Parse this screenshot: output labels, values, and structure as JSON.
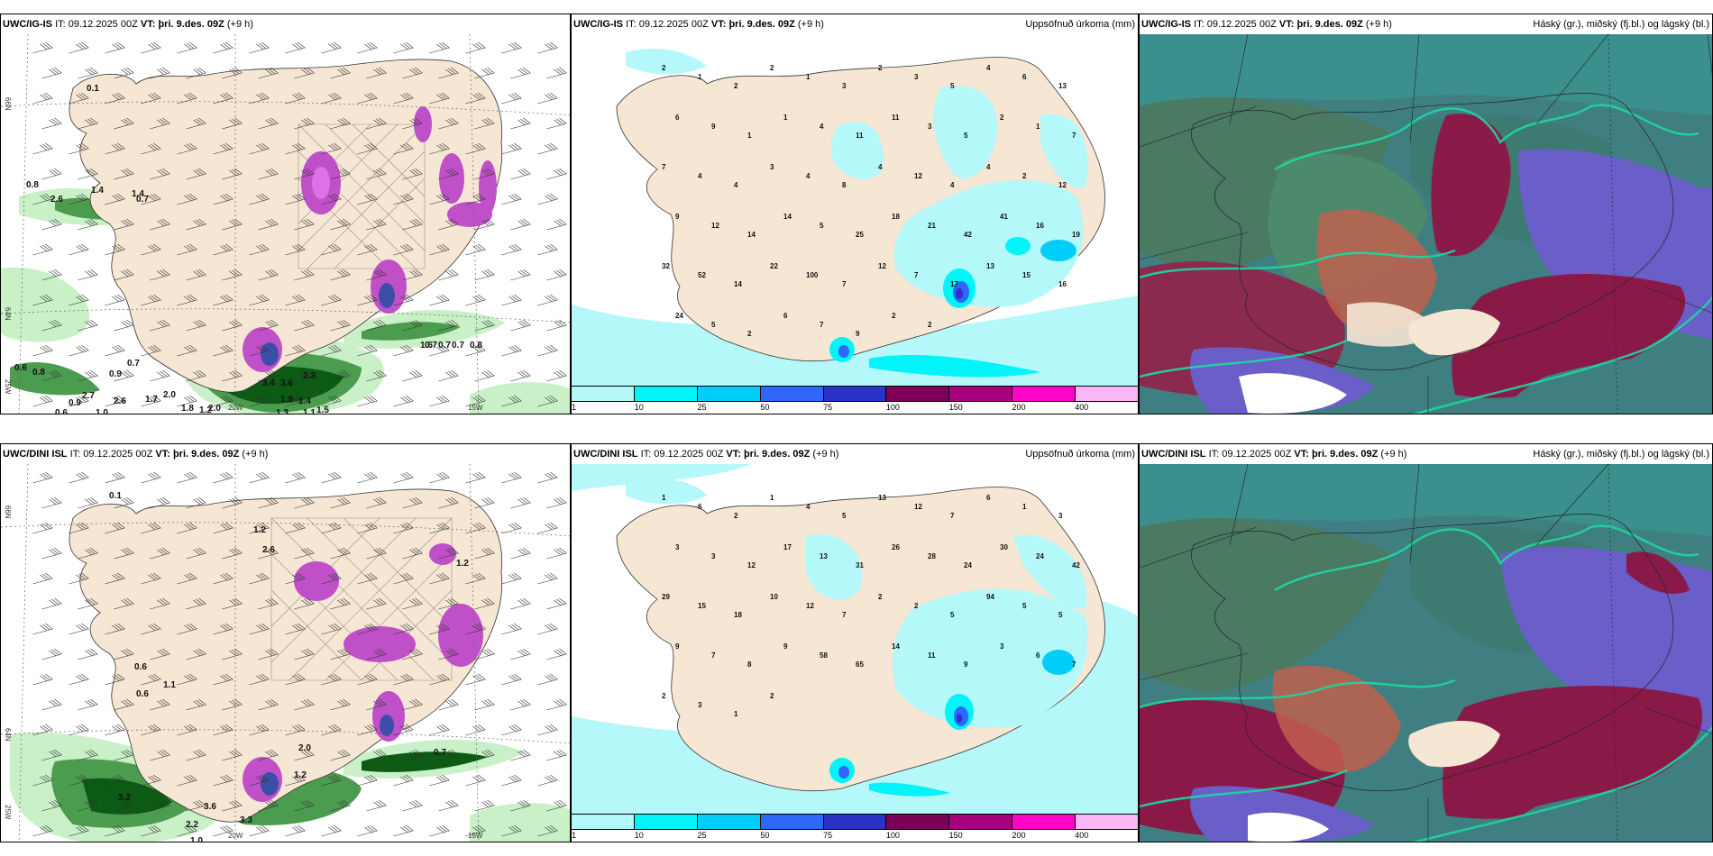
{
  "rows": [
    {
      "model": "UWC/IG-IS",
      "it_label": "IT:",
      "it_value": "09.12.2025 00Z",
      "vt_label": "VT:",
      "vt_value": "þri. 9.des. 09Z",
      "lead": "(+9 h)",
      "panels": {
        "wind": {
          "lat_labels": [
            "66N",
            "64N"
          ],
          "lon_labels": [
            "25W",
            "20W",
            "15W"
          ],
          "values": [
            "0.1",
            "0.8",
            "2.6",
            "1.4",
            "1.4",
            "0.7",
            "0.6",
            "0.8",
            "0.9",
            "0.7",
            "2.7",
            "2.6",
            "0.9",
            "1.0",
            "1.7",
            "2.0",
            "1.8",
            "1.2",
            "2.0",
            "3.4",
            "3.6",
            "2.3",
            "1.9",
            "1.4",
            "1.3",
            "1.1",
            "1.5",
            "1.6",
            "0.7",
            "0.7",
            "0.7",
            "0.8",
            "0.6"
          ]
        },
        "precip": {
          "title": "Uppsöfnuð úrkoma (mm)",
          "values": [
            "2",
            "1",
            "2",
            "2",
            "1",
            "3",
            "2",
            "3",
            "5",
            "4",
            "6",
            "13",
            "6",
            "9",
            "1",
            "1",
            "4",
            "11",
            "11",
            "3",
            "5",
            "2",
            "1",
            "7",
            "7",
            "4",
            "4",
            "3",
            "4",
            "8",
            "4",
            "12",
            "4",
            "4",
            "2",
            "12",
            "9",
            "12",
            "14",
            "14",
            "5",
            "25",
            "18",
            "21",
            "42",
            "41",
            "16",
            "19",
            "32",
            "52",
            "14",
            "22",
            "100",
            "7",
            "12",
            "7",
            "17",
            "13",
            "15",
            "16",
            "24",
            "5",
            "2",
            "6",
            "7",
            "9",
            "2",
            "2"
          ]
        },
        "cloud": {
          "title": "Háský (gr.), miðský (fj.bl.) og lágský (bl.)"
        }
      }
    },
    {
      "model": "UWC/DINI ISL",
      "it_label": "IT:",
      "it_value": "09.12.2025 00Z",
      "vt_label": "VT:",
      "vt_value": "þri. 9.des. 09Z",
      "lead": "(+9 h)",
      "panels": {
        "wind": {
          "lat_labels": [
            "66N",
            "64N"
          ],
          "lon_labels": [
            "25W",
            "20W",
            "15W"
          ],
          "values": [
            "0.1",
            "1.2",
            "2.6",
            "0.6",
            "3.2",
            "3.6",
            "2.2",
            "3.3",
            "1.0",
            "1.2",
            "0.7",
            "2.0",
            "1.1",
            "1.2",
            "0.6"
          ]
        },
        "precip": {
          "title": "Uppsöfnuð úrkoma (mm)",
          "values": [
            "1",
            "6",
            "2",
            "1",
            "4",
            "5",
            "13",
            "12",
            "7",
            "6",
            "1",
            "3",
            "3",
            "3",
            "12",
            "17",
            "13",
            "31",
            "26",
            "28",
            "24",
            "30",
            "24",
            "42",
            "29",
            "15",
            "18",
            "10",
            "12",
            "7",
            "2",
            "2",
            "5",
            "94",
            "5",
            "5",
            "9",
            "7",
            "8",
            "9",
            "58",
            "65",
            "14",
            "11",
            "9",
            "3",
            "6",
            "7",
            "2",
            "3",
            "1",
            "2"
          ]
        },
        "cloud": {
          "title": "Háský (gr.), miðský (fj.bl.) og lágský (bl.)"
        }
      }
    }
  ],
  "colorbar": {
    "ticks": [
      "1",
      "10",
      "25",
      "50",
      "75",
      "100",
      "150",
      "200",
      "400"
    ],
    "colors": [
      "#b4f8fa",
      "#00f4f8",
      "#00cef8",
      "#2f66fb",
      "#2c32c4",
      "#7c0156",
      "#a8017e",
      "#ff05c8",
      "#f9b8f5"
    ]
  },
  "colors": {
    "land": "#f6e6d4",
    "sea_white": "#ffffff",
    "precip_light": "#b4f8fa",
    "wind_green_light": "#c9f0c6",
    "wind_green_dark": "#0c5a14",
    "purple": "#c050c8",
    "cloud_base": "#3f7f82",
    "cloud_high": "#5b8a6a",
    "cloud_mid": "#6a5ec9",
    "cloud_low": "#891a48"
  }
}
